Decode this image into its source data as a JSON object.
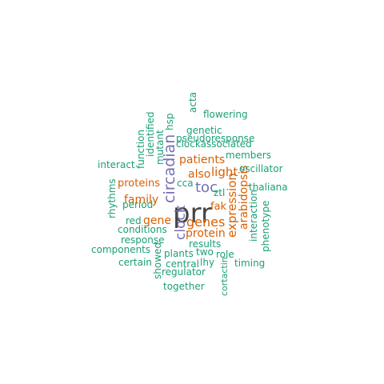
{
  "colors": {
    "green": "#1b9e77",
    "orange": "#d95f02",
    "purple": "#7570b3",
    "gray": "#444444"
  },
  "words": [
    {
      "text": "prr",
      "color": "gray",
      "vertical": false
    },
    {
      "text": "circadian",
      "color": "purple",
      "vertical": true
    },
    {
      "text": "clock",
      "color": "purple",
      "vertical": true
    },
    {
      "text": "toc",
      "color": "purple",
      "vertical": false
    },
    {
      "text": "genes",
      "color": "orange",
      "vertical": false
    },
    {
      "text": "expression",
      "color": "orange",
      "vertical": true
    },
    {
      "text": "light",
      "color": "orange",
      "vertical": false
    },
    {
      "text": "also",
      "color": "orange",
      "vertical": false
    },
    {
      "text": "patients",
      "color": "orange",
      "vertical": false
    },
    {
      "text": "proteins",
      "color": "orange",
      "vertical": false
    },
    {
      "text": "family",
      "color": "orange",
      "vertical": false
    },
    {
      "text": "gene",
      "color": "orange",
      "vertical": false
    },
    {
      "text": "protein",
      "color": "orange",
      "vertical": false
    },
    {
      "text": "fak",
      "color": "orange",
      "vertical": false
    },
    {
      "text": "arabidopsis",
      "color": "orange",
      "vertical": true
    },
    {
      "text": "acta",
      "color": "green",
      "vertical": true
    },
    {
      "text": "flowering",
      "color": "green",
      "vertical": false
    },
    {
      "text": "genetic",
      "color": "green",
      "vertical": false
    },
    {
      "text": "hsp",
      "color": "green",
      "vertical": true
    },
    {
      "text": "pseudoresponse",
      "color": "green",
      "vertical": false
    },
    {
      "text": "function",
      "color": "green",
      "vertical": true
    },
    {
      "text": "identified",
      "color": "green",
      "vertical": true
    },
    {
      "text": "mutant",
      "color": "green",
      "vertical": true
    },
    {
      "text": "clockassociated",
      "color": "green",
      "vertical": false
    },
    {
      "text": "members",
      "color": "green",
      "vertical": false
    },
    {
      "text": "interact",
      "color": "green",
      "vertical": false
    },
    {
      "text": "oscillator",
      "color": "green",
      "vertical": false
    },
    {
      "text": "cca",
      "color": "green",
      "vertical": false
    },
    {
      "text": "thaliana",
      "color": "green",
      "vertical": false
    },
    {
      "text": "ztl",
      "color": "green",
      "vertical": false
    },
    {
      "text": "rhythms",
      "color": "green",
      "vertical": true
    },
    {
      "text": "period",
      "color": "green",
      "vertical": false
    },
    {
      "text": "interaction",
      "color": "green",
      "vertical": true
    },
    {
      "text": "red",
      "color": "green",
      "vertical": false
    },
    {
      "text": "phenotype",
      "color": "green",
      "vertical": true
    },
    {
      "text": "conditions",
      "color": "green",
      "vertical": false
    },
    {
      "text": "response",
      "color": "green",
      "vertical": false
    },
    {
      "text": "results",
      "color": "green",
      "vertical": false
    },
    {
      "text": "components",
      "color": "green",
      "vertical": false
    },
    {
      "text": "plants",
      "color": "green",
      "vertical": false
    },
    {
      "text": "two",
      "color": "green",
      "vertical": false
    },
    {
      "text": "role",
      "color": "green",
      "vertical": false
    },
    {
      "text": "certain",
      "color": "green",
      "vertical": false
    },
    {
      "text": "central",
      "color": "green",
      "vertical": false
    },
    {
      "text": "lhy",
      "color": "green",
      "vertical": false
    },
    {
      "text": "timing",
      "color": "green",
      "vertical": false
    },
    {
      "text": "showed",
      "color": "green",
      "vertical": true
    },
    {
      "text": "regulator",
      "color": "green",
      "vertical": false
    },
    {
      "text": "cortactin",
      "color": "green",
      "vertical": true
    },
    {
      "text": "together",
      "color": "green",
      "vertical": false
    }
  ]
}
